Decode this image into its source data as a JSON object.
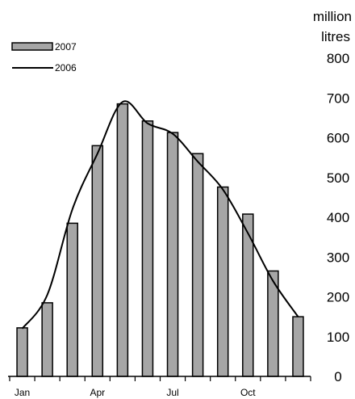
{
  "chart_data": {
    "type": "bar",
    "title": "",
    "xlabel": "",
    "ylabel": "million litres",
    "ylabel_lines": [
      "million",
      "litres"
    ],
    "ylim": [
      0,
      800
    ],
    "yticks": [
      0,
      100,
      200,
      300,
      400,
      500,
      600,
      700,
      800
    ],
    "ytick_labels": [
      "0",
      "100",
      "200",
      "300",
      "400",
      "500",
      "600",
      "700",
      "800"
    ],
    "y_axis_side": "right",
    "categories": [
      "Jan",
      "Feb",
      "Mar",
      "Apr",
      "May",
      "Jun",
      "Jul",
      "Aug",
      "Sep",
      "Oct",
      "Nov",
      "Dec"
    ],
    "xtick_labels": [
      {
        "index": 0,
        "label": "Jan"
      },
      {
        "index": 3,
        "label": "Apr"
      },
      {
        "index": 6,
        "label": "Jul"
      },
      {
        "index": 9,
        "label": "Oct"
      }
    ],
    "grid": false,
    "legend": "top-left",
    "series": [
      {
        "name": "2007",
        "kind": "bar",
        "values": [
          122,
          185,
          385,
          580,
          685,
          642,
          613,
          560,
          476,
          408,
          265,
          150
        ],
        "color": "#a6a6a6",
        "stroke": "#000000"
      },
      {
        "name": "2006",
        "kind": "line",
        "values": [
          120,
          205,
          420,
          560,
          690,
          636,
          610,
          540,
          470,
          360,
          240,
          150
        ],
        "color": "#000000"
      }
    ]
  }
}
